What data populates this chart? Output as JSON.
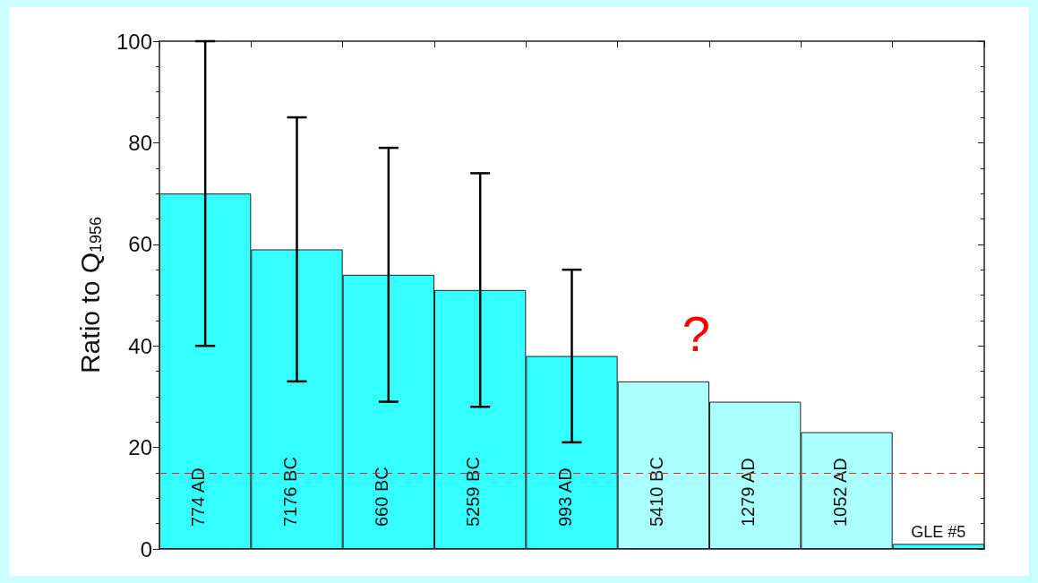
{
  "chart_data": {
    "type": "bar",
    "ylabel": "Ratio to Q$_{1956}$",
    "categories": [
      "774 AD",
      "7176 BC",
      "660 BC",
      "5259 BC",
      "993 AD",
      "5410 BC",
      "1279 AD",
      "1052 AD",
      "GLE #5"
    ],
    "values": [
      70,
      59,
      54,
      51,
      38,
      33,
      29,
      23,
      1
    ],
    "colors": [
      "#33ffff",
      "#33ffff",
      "#33ffff",
      "#33ffff",
      "#33ffff",
      "#aaffff",
      "#aaffff",
      "#aaffff",
      "#33ffff"
    ],
    "errors": [
      [
        40,
        100
      ],
      [
        33,
        85
      ],
      [
        29,
        79
      ],
      [
        28,
        74
      ],
      [
        21,
        55
      ],
      null,
      null,
      null,
      null
    ],
    "ylim": [
      0,
      100
    ],
    "yticks": [
      0,
      20,
      40,
      60,
      80,
      100
    ],
    "ref_lines": [
      {
        "axis": "y",
        "value": 15,
        "color": "#ee2222",
        "line_style": "dashed"
      }
    ],
    "annotations": [
      "?"
    ],
    "grid": false
  }
}
